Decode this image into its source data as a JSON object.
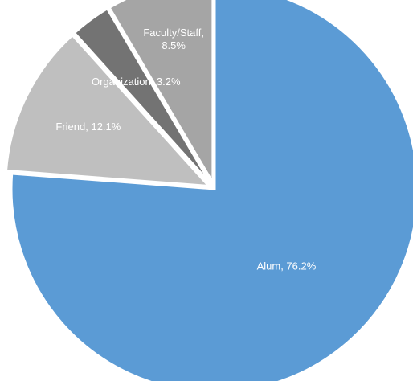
{
  "chart_data": {
    "type": "pie",
    "title": "",
    "slices": [
      {
        "label": "Alum",
        "value": 76.2,
        "display": "Alum, 76.2%",
        "color": "#5b9bd5",
        "exploded": false
      },
      {
        "label": "Friend",
        "value": 12.1,
        "display": "Friend, 12.1%",
        "color": "#bfbfbf",
        "exploded": true
      },
      {
        "label": "Organization",
        "value": 3.2,
        "display": "Organization, 3.2%",
        "color": "#737373",
        "exploded": true
      },
      {
        "label": "Faculty/Staff",
        "value": 8.5,
        "display": "Faculty/Staff, 8.5%",
        "color": "#a5a5a5",
        "exploded": true
      }
    ],
    "legend": "none",
    "data_labels": "inside"
  }
}
